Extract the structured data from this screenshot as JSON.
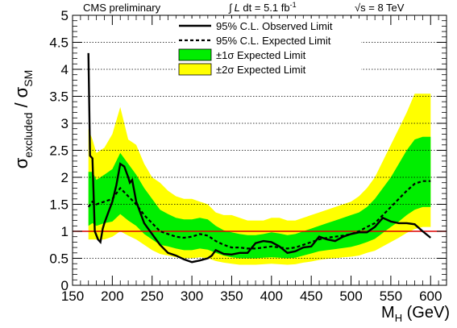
{
  "header": {
    "left": "CMS preliminary",
    "lumi_integral": "∫",
    "lumi_L": "L",
    "lumi_text": " dt = 5.1 fb",
    "lumi_exp": "-1",
    "energy": "√s = 8 TeV"
  },
  "chart_data": {
    "type": "line",
    "xlabel_main": "M",
    "xlabel_sub": "H",
    "xlabel_unit": " (GeV)",
    "ylabel_sigma1": "σ",
    "ylabel_sub1": "excluded",
    "ylabel_slash": " / ",
    "ylabel_sigma2": "σ",
    "ylabel_sub2": "SM",
    "xlim": [
      150,
      620
    ],
    "ylim": [
      0,
      5
    ],
    "x_ticks": [
      150,
      200,
      250,
      300,
      350,
      400,
      450,
      500,
      550,
      600
    ],
    "y_ticks": [
      0,
      0.5,
      1,
      1.5,
      2,
      2.5,
      3,
      3.5,
      4,
      4.5,
      5
    ],
    "y_grid": true,
    "reference_line": {
      "y": 1,
      "color": "#dd0000"
    },
    "legend": {
      "position": "top-center",
      "entries": [
        {
          "label": "95% C.L. Observed Limit",
          "style": "solid-line"
        },
        {
          "label": "95% C.L. Expected Limit",
          "style": "dashed-line"
        },
        {
          "label": "±1σ Expected Limit",
          "style": "green-box"
        },
        {
          "label": "±2σ Expected Limit",
          "style": "yellow-box"
        }
      ]
    },
    "colors": {
      "band1": "#00ee00",
      "band2": "#ffff00",
      "observed": "#000000",
      "expected": "#000000"
    },
    "series": [
      {
        "name": "95% C.L. Observed Limit",
        "x": [
          170,
          172,
          175,
          178,
          182,
          185,
          188,
          190,
          195,
          200,
          205,
          210,
          215,
          220,
          222,
          225,
          230,
          240,
          250,
          260,
          270,
          280,
          290,
          300,
          310,
          320,
          325,
          330,
          340,
          350,
          360,
          370,
          380,
          385,
          390,
          400,
          410,
          420,
          430,
          440,
          450,
          460,
          470,
          480,
          490,
          500,
          510,
          520,
          530,
          540,
          550,
          560,
          570,
          580,
          590,
          600
        ],
        "y": [
          4.3,
          2.4,
          2.35,
          1.0,
          0.85,
          0.8,
          1.05,
          1.15,
          1.35,
          1.55,
          1.85,
          2.25,
          2.2,
          2.0,
          1.9,
          1.95,
          1.55,
          1.15,
          0.95,
          0.75,
          0.6,
          0.55,
          0.48,
          0.43,
          0.46,
          0.5,
          0.55,
          0.65,
          0.58,
          0.57,
          0.6,
          0.6,
          0.78,
          0.8,
          0.82,
          0.8,
          0.72,
          0.6,
          0.63,
          0.7,
          0.72,
          0.9,
          0.85,
          0.82,
          0.9,
          0.95,
          0.98,
          0.98,
          1.08,
          1.25,
          1.18,
          1.15,
          1.15,
          1.13,
          1.0,
          0.88
        ]
      },
      {
        "name": "95% C.L. Expected Limit",
        "x": [
          170,
          175,
          180,
          190,
          200,
          210,
          220,
          230,
          240,
          250,
          260,
          270,
          280,
          290,
          300,
          310,
          320,
          330,
          340,
          350,
          360,
          370,
          380,
          390,
          400,
          410,
          420,
          430,
          440,
          450,
          460,
          470,
          480,
          490,
          500,
          510,
          520,
          530,
          540,
          550,
          560,
          570,
          580,
          590,
          600
        ],
        "y": [
          1.45,
          1.55,
          1.5,
          1.55,
          1.6,
          1.8,
          1.65,
          1.5,
          1.3,
          1.15,
          1.0,
          0.95,
          0.9,
          0.88,
          0.9,
          0.95,
          0.92,
          0.82,
          0.75,
          0.7,
          0.7,
          0.68,
          0.68,
          0.7,
          0.72,
          0.7,
          0.68,
          0.7,
          0.75,
          0.8,
          0.85,
          0.88,
          0.9,
          0.92,
          0.95,
          1.0,
          1.08,
          1.15,
          1.3,
          1.45,
          1.6,
          1.75,
          1.88,
          1.93,
          1.93
        ]
      },
      {
        "name": "±2σ Expected Limit",
        "x": [
          170,
          175,
          180,
          190,
          200,
          210,
          220,
          230,
          240,
          250,
          260,
          270,
          280,
          290,
          300,
          310,
          320,
          330,
          340,
          350,
          360,
          370,
          380,
          390,
          400,
          410,
          420,
          430,
          440,
          450,
          460,
          470,
          480,
          490,
          500,
          510,
          520,
          530,
          540,
          550,
          560,
          570,
          580,
          590,
          600
        ],
        "upper": [
          2.9,
          2.7,
          2.45,
          2.55,
          2.8,
          3.3,
          2.7,
          2.6,
          2.25,
          2.0,
          1.9,
          1.75,
          1.65,
          1.6,
          1.6,
          1.55,
          1.5,
          1.35,
          1.3,
          1.3,
          1.25,
          1.2,
          1.2,
          1.2,
          1.25,
          1.25,
          1.2,
          1.2,
          1.25,
          1.3,
          1.35,
          1.4,
          1.45,
          1.5,
          1.55,
          1.65,
          1.8,
          2.0,
          2.3,
          2.6,
          2.9,
          3.2,
          3.55,
          3.55,
          3.55
        ],
        "lower": [
          0.85,
          0.85,
          0.85,
          0.85,
          0.9,
          1.0,
          0.92,
          0.85,
          0.75,
          0.65,
          0.58,
          0.55,
          0.52,
          0.5,
          0.5,
          0.52,
          0.5,
          0.45,
          0.42,
          0.4,
          0.38,
          0.38,
          0.38,
          0.39,
          0.4,
          0.39,
          0.38,
          0.39,
          0.42,
          0.44,
          0.47,
          0.49,
          0.5,
          0.52,
          0.53,
          0.55,
          0.6,
          0.64,
          0.72,
          0.8,
          0.88,
          0.97,
          1.04,
          1.08,
          1.08
        ]
      },
      {
        "name": "±1σ Expected Limit",
        "x": [
          170,
          175,
          180,
          190,
          200,
          210,
          220,
          230,
          240,
          250,
          260,
          270,
          280,
          290,
          300,
          310,
          320,
          330,
          340,
          350,
          360,
          370,
          380,
          390,
          400,
          410,
          420,
          430,
          440,
          450,
          460,
          470,
          480,
          490,
          500,
          510,
          520,
          530,
          540,
          550,
          560,
          570,
          580,
          590,
          600
        ],
        "upper": [
          2.1,
          2.1,
          1.95,
          2.05,
          2.15,
          2.45,
          2.25,
          2.05,
          1.8,
          1.6,
          1.4,
          1.32,
          1.25,
          1.22,
          1.22,
          1.25,
          1.22,
          1.1,
          1.02,
          0.98,
          0.95,
          0.93,
          0.93,
          0.95,
          0.98,
          0.96,
          0.93,
          0.95,
          1.0,
          1.05,
          1.1,
          1.15,
          1.2,
          1.25,
          1.3,
          1.35,
          1.45,
          1.6,
          1.8,
          2.0,
          2.25,
          2.5,
          2.7,
          2.75,
          2.75
        ],
        "lower": [
          1.1,
          1.15,
          1.1,
          1.15,
          1.18,
          1.32,
          1.2,
          1.1,
          0.95,
          0.85,
          0.75,
          0.72,
          0.68,
          0.65,
          0.65,
          0.68,
          0.66,
          0.6,
          0.55,
          0.52,
          0.5,
          0.5,
          0.5,
          0.51,
          0.52,
          0.51,
          0.5,
          0.51,
          0.55,
          0.59,
          0.63,
          0.65,
          0.67,
          0.69,
          0.71,
          0.75,
          0.8,
          0.86,
          0.97,
          1.08,
          1.18,
          1.3,
          1.4,
          1.45,
          1.45
        ]
      }
    ]
  }
}
